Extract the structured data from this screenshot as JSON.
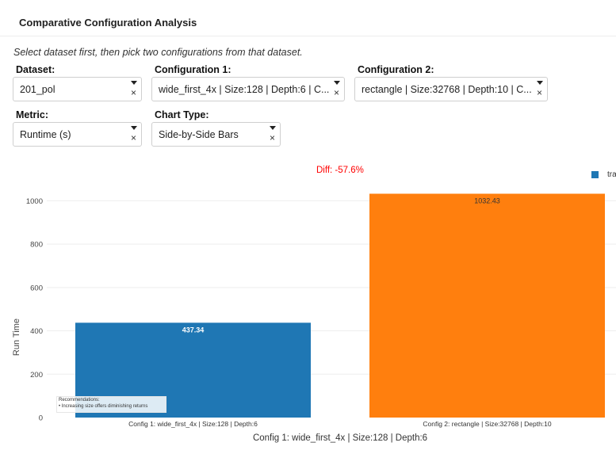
{
  "header": {
    "title": "Comparative Configuration Analysis"
  },
  "instructions": "Select dataset first, then pick two configurations from that dataset.",
  "controls": {
    "dataset": {
      "label": "Dataset:",
      "value": "201_pol"
    },
    "config1": {
      "label": "Configuration 1:",
      "value": "wide_first_4x | Size:128 | Depth:6 | C..."
    },
    "config2": {
      "label": "Configuration 2:",
      "value": "rectangle | Size:32768 | Depth:10 | C..."
    },
    "metric": {
      "label": "Metric:",
      "value": "Runtime (s)"
    },
    "chart_type": {
      "label": "Chart Type:",
      "value": "Side-by-Side Bars"
    },
    "caret_icon": "caret-down-icon",
    "clear_icon": "×"
  },
  "diff_label": "Diff: -57.6%",
  "legend": {
    "label": "tra"
  },
  "recommendations": {
    "title": "Recommendations:",
    "items": [
      "• Increasing size offers diminishing returns"
    ]
  },
  "chart_data": {
    "type": "bar",
    "categories": [
      "Config 1: wide_first_4x | Size:128 | Depth:6",
      "Config 2: rectangle | Size:32768 | Depth:10"
    ],
    "values": [
      437.34,
      1032.43
    ],
    "value_labels": [
      "437.34",
      "1032.43"
    ],
    "colors": [
      "#1f77b4",
      "#ff7f0e"
    ],
    "title": "",
    "xlabel": "Config 1: wide_first_4x | Size:128 | Depth:6",
    "ylabel": "Run Time",
    "ylim": [
      0,
      1032.43
    ],
    "yticks": [
      0,
      200,
      400,
      600,
      800,
      1000
    ],
    "grid": true,
    "legend_placement": "top-right"
  }
}
